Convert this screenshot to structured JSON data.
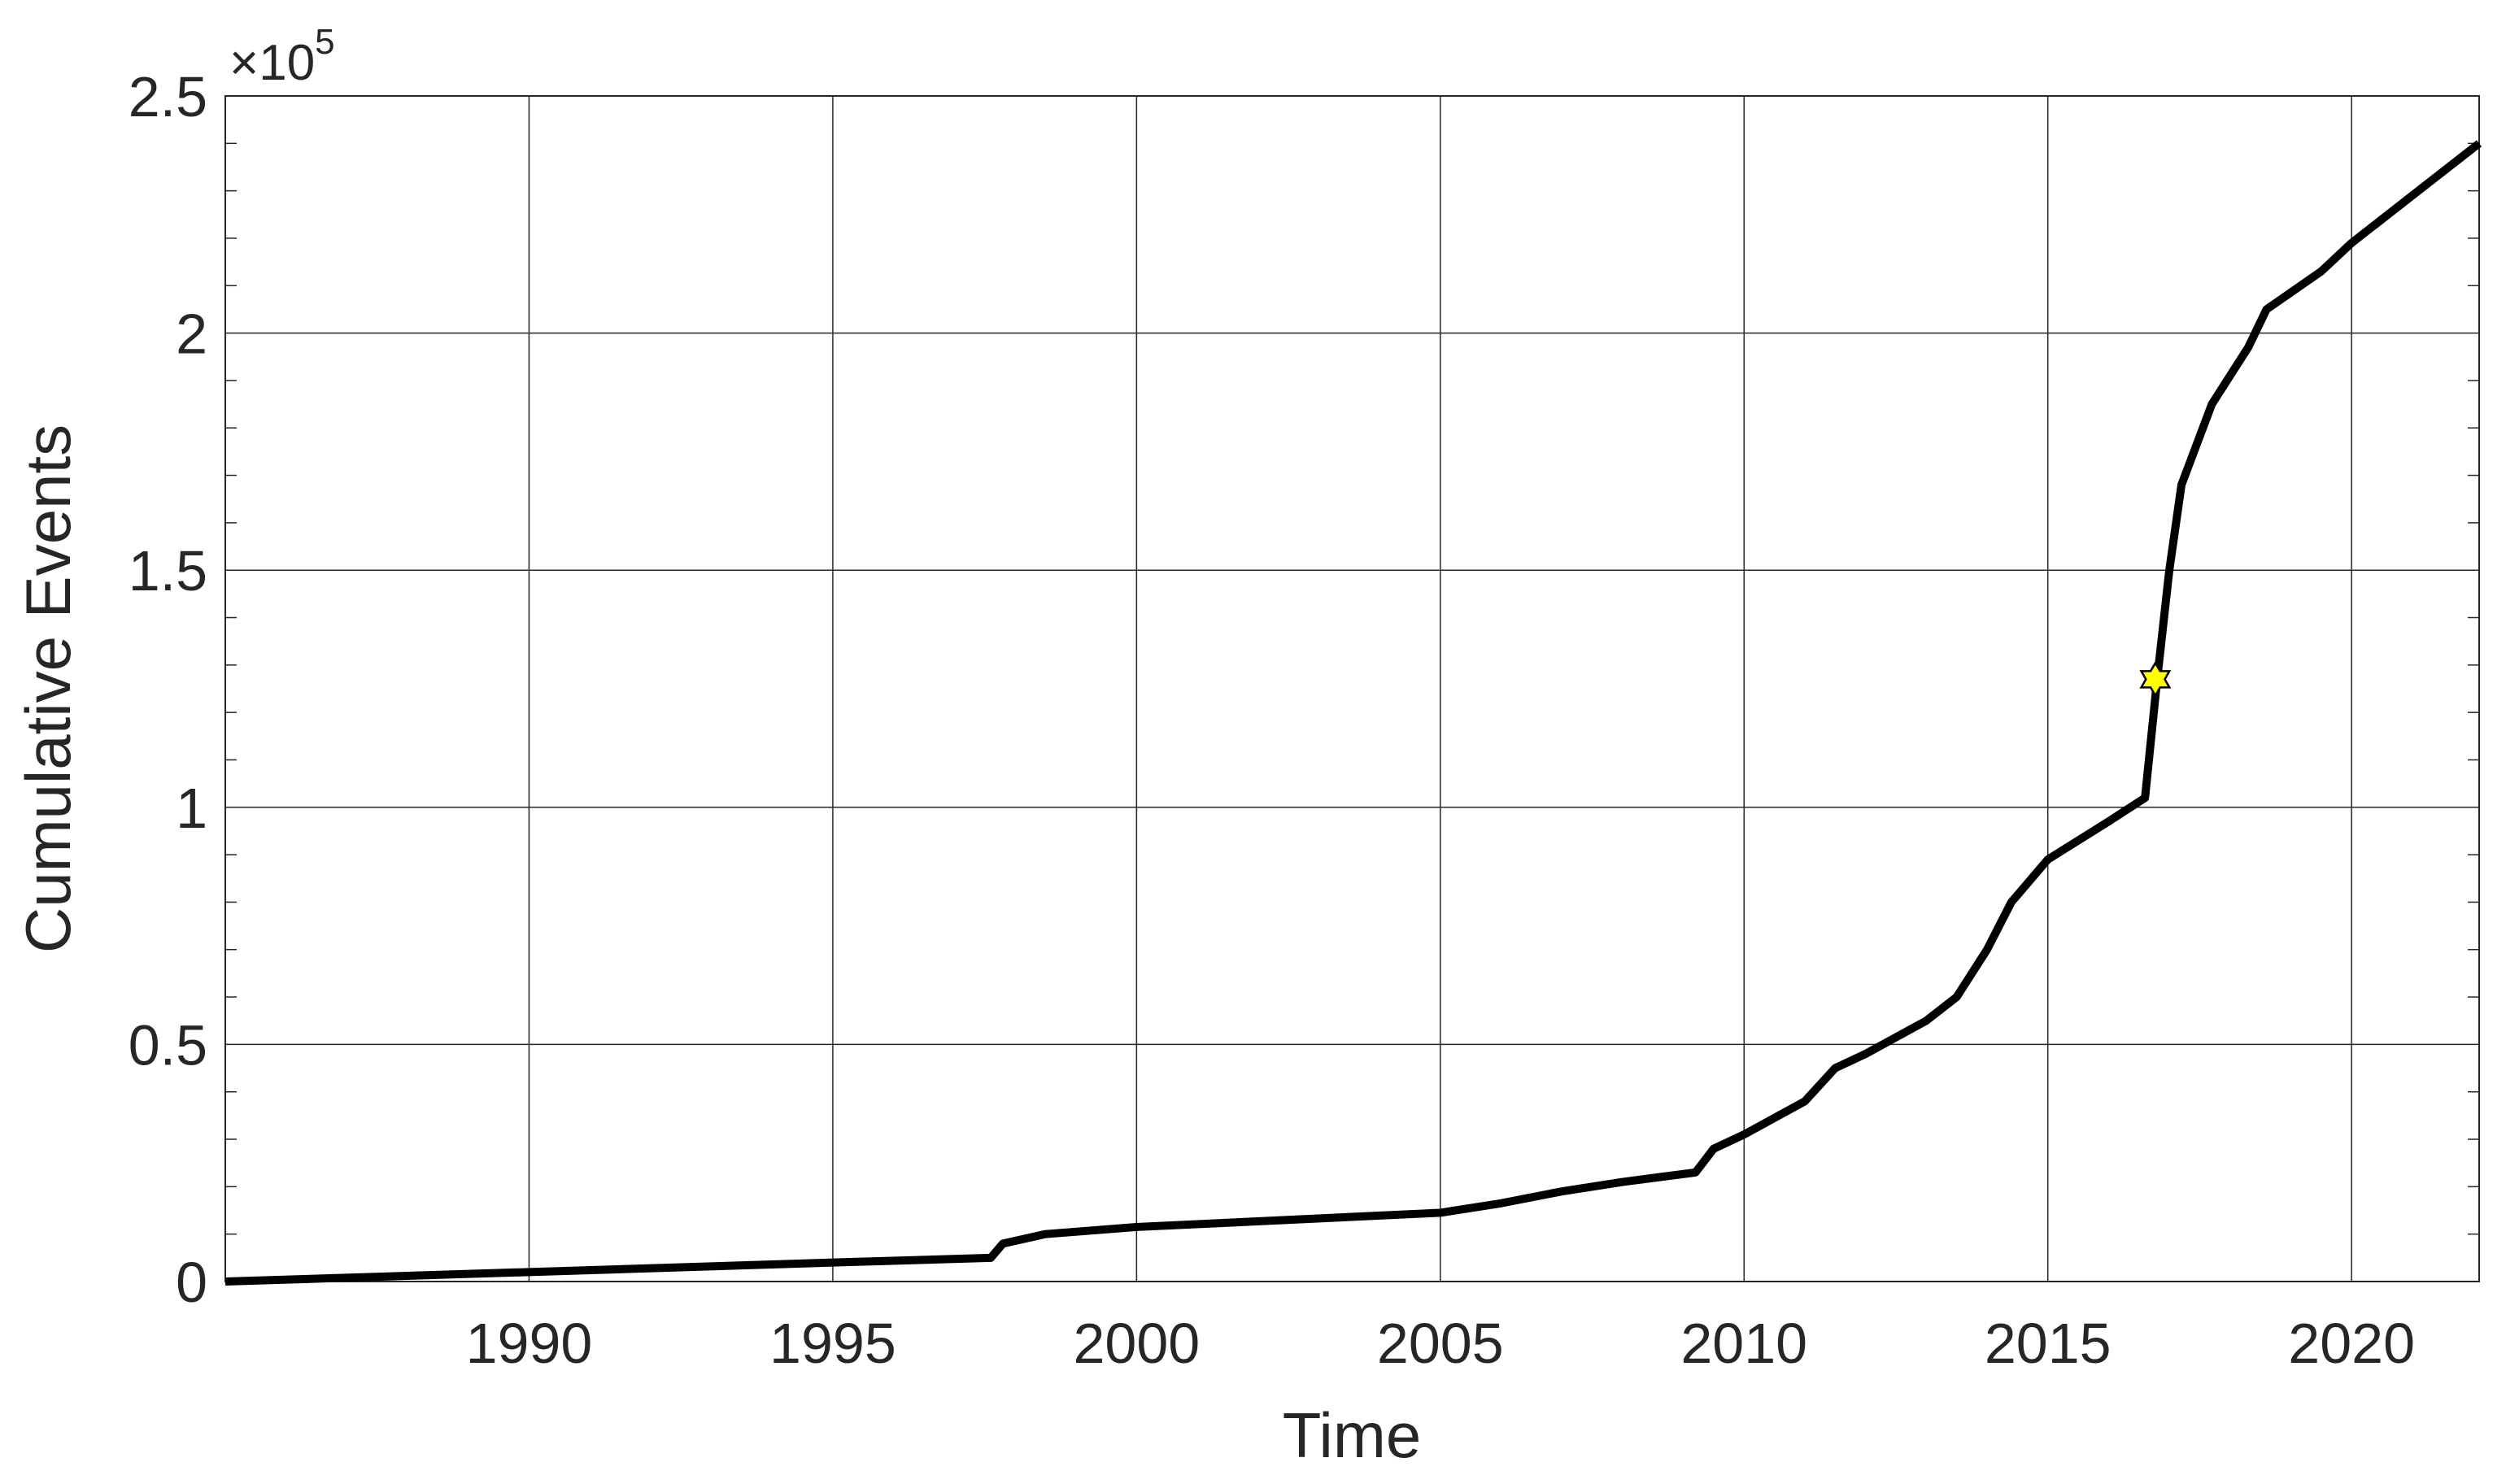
{
  "chart_data": {
    "type": "line",
    "xlabel": "Time",
    "ylabel": "Cumulative Events",
    "y_multiplier": "×10",
    "y_exponent": "5",
    "x": [
      1985.0,
      1990,
      1995,
      1997.6,
      1997.8,
      1998.5,
      2000,
      2005,
      2006,
      2007,
      2008,
      2009.2,
      2009.5,
      2010,
      2011,
      2011.5,
      2012,
      2013,
      2013.5,
      2014,
      2014.4,
      2015,
      2016,
      2016.6,
      2016.8,
      2017.0,
      2017.2,
      2017.7,
      2018.3,
      2018.6,
      2019.5,
      2020,
      2021,
      2022.1
    ],
    "values": [
      0,
      2000,
      4000,
      5000,
      8000,
      10000,
      11500,
      14500,
      16500,
      19000,
      21000,
      23000,
      28000,
      31000,
      38000,
      45000,
      48000,
      55000,
      60000,
      70000,
      80000,
      89000,
      97000,
      102000,
      127000,
      150000,
      168000,
      185000,
      197000,
      205000,
      213000,
      219000,
      229000,
      240000
    ],
    "color": "#000000",
    "marker": {
      "x": 2016.77,
      "y": 127000,
      "color": "#ffff00"
    },
    "xlim": [
      1985,
      2022.1
    ],
    "ylim": [
      0,
      250000
    ],
    "xticks": [
      1990,
      1995,
      2000,
      2005,
      2010,
      2015,
      2020
    ],
    "yticks": [
      0,
      {
        "value": 50000,
        "label": "0.5"
      },
      {
        "value": 100000,
        "label": "1"
      },
      {
        "value": 150000,
        "label": "1.5"
      },
      {
        "value": 200000,
        "label": "2"
      },
      {
        "value": 250000,
        "label": "2.5"
      }
    ],
    "yminorticks": [
      10000,
      20000,
      30000,
      40000,
      60000,
      70000,
      80000,
      90000,
      110000,
      120000,
      130000,
      140000,
      160000,
      170000,
      180000,
      190000,
      210000,
      220000,
      230000,
      240000
    ],
    "grid": true
  }
}
